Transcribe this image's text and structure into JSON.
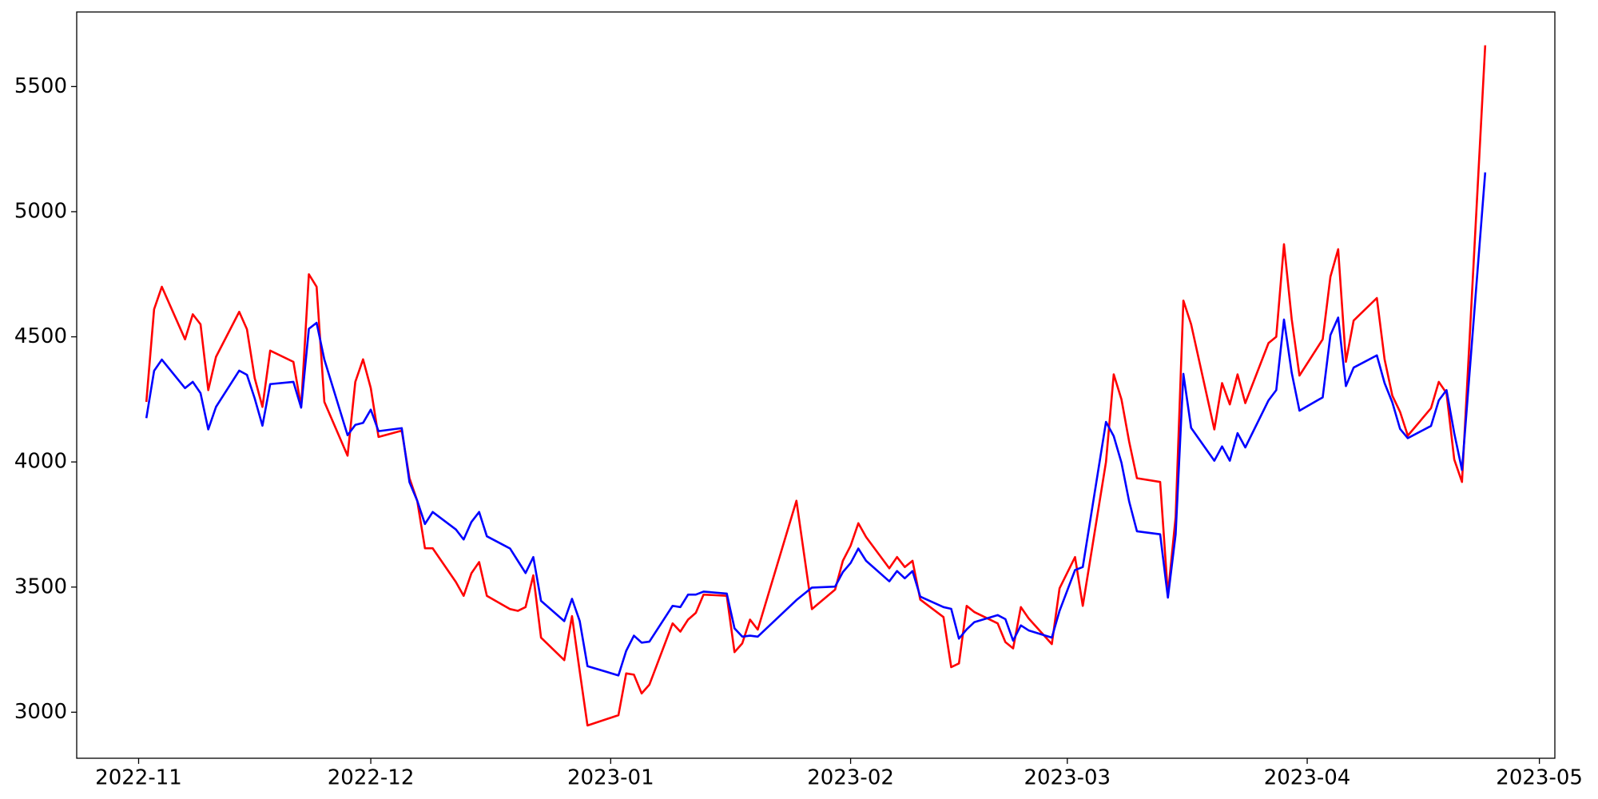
{
  "chart_data": {
    "type": "line",
    "x": [
      "2022-11-02",
      "2022-11-03",
      "2022-11-04",
      "2022-11-07",
      "2022-11-08",
      "2022-11-09",
      "2022-11-10",
      "2022-11-11",
      "2022-11-14",
      "2022-11-15",
      "2022-11-16",
      "2022-11-17",
      "2022-11-18",
      "2022-11-21",
      "2022-11-22",
      "2022-11-23",
      "2022-11-24",
      "2022-11-25",
      "2022-11-28",
      "2022-11-29",
      "2022-11-30",
      "2022-12-01",
      "2022-12-02",
      "2022-12-05",
      "2022-12-06",
      "2022-12-07",
      "2022-12-08",
      "2022-12-09",
      "2022-12-12",
      "2022-12-13",
      "2022-12-14",
      "2022-12-15",
      "2022-12-16",
      "2022-12-19",
      "2022-12-20",
      "2022-12-21",
      "2022-12-22",
      "2022-12-23",
      "2022-12-26",
      "2022-12-27",
      "2022-12-28",
      "2022-12-29",
      "2023-01-02",
      "2023-01-03",
      "2023-01-04",
      "2023-01-05",
      "2023-01-06",
      "2023-01-09",
      "2023-01-10",
      "2023-01-11",
      "2023-01-12",
      "2023-01-13",
      "2023-01-16",
      "2023-01-17",
      "2023-01-18",
      "2023-01-19",
      "2023-01-20",
      "2023-01-25",
      "2023-01-27",
      "2023-01-30",
      "2023-01-31",
      "2023-02-01",
      "2023-02-02",
      "2023-02-03",
      "2023-02-06",
      "2023-02-07",
      "2023-02-08",
      "2023-02-09",
      "2023-02-10",
      "2023-02-13",
      "2023-02-14",
      "2023-02-15",
      "2023-02-16",
      "2023-02-17",
      "2023-02-20",
      "2023-02-21",
      "2023-02-22",
      "2023-02-23",
      "2023-02-24",
      "2023-02-27",
      "2023-02-28",
      "2023-03-02",
      "2023-03-03",
      "2023-03-06",
      "2023-03-07",
      "2023-03-08",
      "2023-03-09",
      "2023-03-10",
      "2023-03-13",
      "2023-03-14",
      "2023-03-15",
      "2023-03-16",
      "2023-03-17",
      "2023-03-20",
      "2023-03-21",
      "2023-03-22",
      "2023-03-23",
      "2023-03-24",
      "2023-03-27",
      "2023-03-28",
      "2023-03-29",
      "2023-03-30",
      "2023-03-31",
      "2023-04-03",
      "2023-04-04",
      "2023-04-05",
      "2023-04-06",
      "2023-04-07",
      "2023-04-10",
      "2023-04-11",
      "2023-04-12",
      "2023-04-13",
      "2023-04-14",
      "2023-04-17",
      "2023-04-18",
      "2023-04-19",
      "2023-04-20",
      "2023-04-21",
      "2023-04-24"
    ],
    "series": [
      {
        "color": "#ff0000",
        "values": [
          4240,
          4610,
          4700,
          4490,
          4590,
          4550,
          4287,
          4420,
          4600,
          4530,
          4335,
          4220,
          4445,
          4400,
          4220,
          4750,
          4700,
          4240,
          4025,
          4320,
          4410,
          4295,
          4100,
          4125,
          3935,
          3845,
          3655,
          3655,
          3520,
          3465,
          3555,
          3600,
          3465,
          3412,
          3405,
          3420,
          3547,
          3298,
          3208,
          3384,
          3163,
          2947,
          2988,
          3155,
          3150,
          3075,
          3110,
          3355,
          3322,
          3370,
          3397,
          3470,
          3465,
          3240,
          3275,
          3370,
          3330,
          3845,
          3412,
          3490,
          3605,
          3665,
          3755,
          3700,
          3575,
          3620,
          3580,
          3605,
          3450,
          3380,
          3180,
          3195,
          3425,
          3400,
          3355,
          3280,
          3255,
          3420,
          3375,
          3272,
          3495,
          3620,
          3425,
          4000,
          4350,
          4250,
          4080,
          3935,
          3920,
          3470,
          3780,
          4645,
          4550,
          4130,
          4315,
          4230,
          4350,
          4235,
          4475,
          4500,
          4870,
          4570,
          4345,
          4490,
          4740,
          4850,
          4400,
          4565,
          4655,
          4410,
          4265,
          4200,
          4105,
          4215,
          4320,
          4275,
          4010,
          3920,
          5665
        ]
      },
      {
        "color": "#0000ff",
        "values": [
          4175,
          4364,
          4409,
          4295,
          4320,
          4275,
          4130,
          4220,
          4365,
          4348,
          4254,
          4145,
          4311,
          4320,
          4217,
          4532,
          4556,
          4409,
          4107,
          4148,
          4156,
          4209,
          4123,
          4135,
          3919,
          3845,
          3752,
          3800,
          3730,
          3690,
          3760,
          3800,
          3703,
          3654,
          3605,
          3556,
          3620,
          3445,
          3364,
          3453,
          3364,
          3184,
          3147,
          3245,
          3306,
          3278,
          3282,
          3425,
          3420,
          3470,
          3470,
          3482,
          3474,
          3335,
          3302,
          3306,
          3302,
          3448,
          3498,
          3502,
          3560,
          3596,
          3654,
          3605,
          3523,
          3564,
          3535,
          3564,
          3462,
          3420,
          3413,
          3294,
          3331,
          3360,
          3388,
          3372,
          3286,
          3347,
          3327,
          3298,
          3405,
          3568,
          3580,
          4160,
          4103,
          3997,
          3841,
          3723,
          3711,
          3458,
          3711,
          4352,
          4136,
          4005,
          4062,
          4005,
          4115,
          4058,
          4246,
          4287,
          4569,
          4356,
          4205,
          4258,
          4507,
          4577,
          4303,
          4377,
          4426,
          4315,
          4238,
          4132,
          4095,
          4144,
          4246,
          4287,
          4115,
          3968,
          5157
        ]
      }
    ],
    "xlim": [
      "2022-10-24",
      "2023-05-03"
    ],
    "xticks": [
      "2022-11",
      "2022-12",
      "2023-01",
      "2023-02",
      "2023-03",
      "2023-04",
      "2023-05"
    ],
    "ylim": [
      2816,
      5798
    ],
    "yticks": [
      3000,
      3500,
      4000,
      4500,
      5000,
      5500
    ],
    "grid": false
  }
}
